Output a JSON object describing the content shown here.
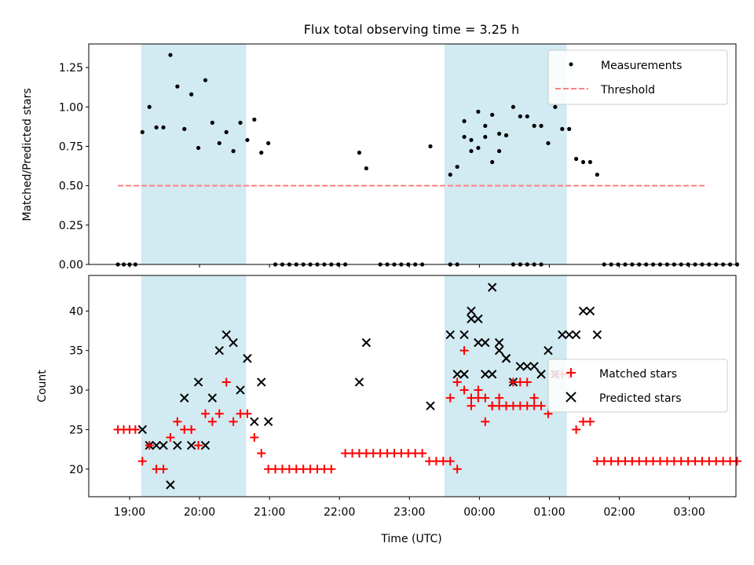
{
  "title": "Flux total observing time = 3.25 h",
  "colors": {
    "shade": "#add8e6",
    "threshold": "#ff7f7f",
    "matched": "#ff0000",
    "predicted": "#000000",
    "measurement": "#000000"
  },
  "chart_data": [
    {
      "type": "scatter",
      "ylabel": "Matched/Predicted stars",
      "xlim": [
        "18:25",
        "03:40"
      ],
      "ylim": [
        0,
        1.4
      ],
      "yticks": [
        "0.00",
        "0.25",
        "0.50",
        "0.75",
        "1.00",
        "1.25"
      ],
      "ytick_values": [
        0,
        0.25,
        0.5,
        0.75,
        1.0,
        1.25
      ],
      "legend_position": "upper right",
      "shaded_intervals": [
        [
          "19:10",
          "20:40"
        ],
        [
          "23:30",
          "01:15"
        ]
      ],
      "threshold": {
        "name": "Threshold",
        "value": 0.5,
        "x_range": [
          "18:50",
          "03:15"
        ]
      },
      "series": [
        {
          "name": "Measurements",
          "points": [
            [
              "18:50",
              0
            ],
            [
              "18:55",
              0
            ],
            [
              "19:00",
              0
            ],
            [
              "19:05",
              0
            ],
            [
              "19:11",
              0.84
            ],
            [
              "19:17",
              1.0
            ],
            [
              "19:23",
              0.87
            ],
            [
              "19:29",
              0.87
            ],
            [
              "19:35",
              1.33
            ],
            [
              "19:41",
              1.13
            ],
            [
              "19:47",
              0.86
            ],
            [
              "19:53",
              1.08
            ],
            [
              "19:59",
              0.74
            ],
            [
              "20:05",
              1.17
            ],
            [
              "20:11",
              0.9
            ],
            [
              "20:17",
              0.77
            ],
            [
              "20:23",
              0.84
            ],
            [
              "20:29",
              0.72
            ],
            [
              "20:35",
              0.9
            ],
            [
              "20:41",
              0.79
            ],
            [
              "20:47",
              0.92
            ],
            [
              "20:53",
              0.71
            ],
            [
              "20:59",
              0.77
            ],
            [
              "21:05",
              0
            ],
            [
              "21:11",
              0
            ],
            [
              "21:17",
              0
            ],
            [
              "21:23",
              0
            ],
            [
              "21:29",
              0
            ],
            [
              "21:35",
              0
            ],
            [
              "21:41",
              0
            ],
            [
              "21:47",
              0
            ],
            [
              "21:53",
              0
            ],
            [
              "21:59",
              0
            ],
            [
              "22:05",
              0
            ],
            [
              "22:17",
              0.71
            ],
            [
              "22:23",
              0.61
            ],
            [
              "22:35",
              0
            ],
            [
              "22:41",
              0
            ],
            [
              "22:47",
              0
            ],
            [
              "22:53",
              0
            ],
            [
              "22:59",
              0
            ],
            [
              "23:05",
              0
            ],
            [
              "23:11",
              0
            ],
            [
              "23:18",
              0.75
            ],
            [
              "23:35",
              0
            ],
            [
              "23:41",
              0
            ],
            [
              "23:47",
              0.91
            ],
            [
              "23:53",
              0.79
            ],
            [
              "23:59",
              0.97
            ],
            [
              "00:05",
              0.88
            ],
            [
              "00:11",
              0.95
            ],
            [
              "00:17",
              0.72
            ],
            [
              "00:23",
              0.82
            ],
            [
              "00:29",
              0
            ],
            [
              "00:35",
              0
            ],
            [
              "00:41",
              0
            ],
            [
              "00:47",
              0
            ],
            [
              "00:53",
              0
            ],
            [
              "23:35",
              0.57
            ],
            [
              "23:41",
              0.62
            ],
            [
              "23:47",
              0.81
            ],
            [
              "23:53",
              0.72
            ],
            [
              "23:59",
              0.74
            ],
            [
              "00:05",
              0.81
            ],
            [
              "00:11",
              0.65
            ],
            [
              "00:17",
              0.83
            ],
            [
              "00:23",
              0.82
            ],
            [
              "00:29",
              1.0
            ],
            [
              "00:35",
              0.94
            ],
            [
              "00:41",
              0.94
            ],
            [
              "00:47",
              0.88
            ],
            [
              "00:53",
              0.88
            ],
            [
              "00:59",
              0.77
            ],
            [
              "01:05",
              1.0
            ],
            [
              "01:11",
              0.86
            ],
            [
              "01:17",
              0.86
            ],
            [
              "01:23",
              0.67
            ],
            [
              "01:29",
              0.65
            ],
            [
              "01:35",
              0.65
            ],
            [
              "01:41",
              0.57
            ],
            [
              "01:47",
              0
            ],
            [
              "01:53",
              0
            ],
            [
              "01:59",
              0
            ],
            [
              "02:05",
              0
            ],
            [
              "02:11",
              0
            ],
            [
              "02:17",
              0
            ],
            [
              "02:23",
              0
            ],
            [
              "02:29",
              0
            ],
            [
              "02:35",
              0
            ],
            [
              "02:41",
              0
            ],
            [
              "02:47",
              0
            ],
            [
              "02:53",
              0
            ],
            [
              "02:59",
              0
            ],
            [
              "03:05",
              0
            ],
            [
              "03:11",
              0
            ],
            [
              "03:17",
              0
            ],
            [
              "03:23",
              0
            ],
            [
              "03:29",
              0
            ],
            [
              "03:35",
              0
            ],
            [
              "03:41",
              0
            ]
          ]
        }
      ]
    },
    {
      "type": "scatter",
      "xlabel": "Time (UTC)",
      "ylabel": "Count",
      "xlim": [
        "18:25",
        "03:40"
      ],
      "ylim": [
        16.5,
        44.5
      ],
      "yticks": [
        "20",
        "25",
        "30",
        "35",
        "40"
      ],
      "ytick_values": [
        20,
        25,
        30,
        35,
        40
      ],
      "xticks": [
        "19:00",
        "20:00",
        "21:00",
        "22:00",
        "23:00",
        "00:00",
        "01:00",
        "02:00",
        "03:00"
      ],
      "legend_position": "center right",
      "shaded_intervals": [
        [
          "19:10",
          "20:40"
        ],
        [
          "23:30",
          "01:15"
        ]
      ],
      "series": [
        {
          "name": "Matched stars",
          "points": [
            [
              "18:50",
              25
            ],
            [
              "18:55",
              25
            ],
            [
              "19:00",
              25
            ],
            [
              "19:05",
              25
            ],
            [
              "19:11",
              21
            ],
            [
              "19:17",
              23
            ],
            [
              "19:23",
              20
            ],
            [
              "19:29",
              20
            ],
            [
              "19:35",
              24
            ],
            [
              "19:41",
              26
            ],
            [
              "19:47",
              25
            ],
            [
              "19:53",
              25
            ],
            [
              "19:59",
              23
            ],
            [
              "20:05",
              27
            ],
            [
              "20:11",
              26
            ],
            [
              "20:17",
              27
            ],
            [
              "20:23",
              31
            ],
            [
              "20:29",
              26
            ],
            [
              "20:35",
              27
            ],
            [
              "20:41",
              27
            ],
            [
              "20:47",
              24
            ],
            [
              "20:53",
              22
            ],
            [
              "20:59",
              20
            ],
            [
              "21:05",
              20
            ],
            [
              "21:11",
              20
            ],
            [
              "21:17",
              20
            ],
            [
              "21:23",
              20
            ],
            [
              "21:29",
              20
            ],
            [
              "21:35",
              20
            ],
            [
              "21:41",
              20
            ],
            [
              "21:47",
              20
            ],
            [
              "21:53",
              20
            ],
            [
              "22:05",
              22
            ],
            [
              "22:11",
              22
            ],
            [
              "22:17",
              22
            ],
            [
              "22:23",
              22
            ],
            [
              "22:29",
              22
            ],
            [
              "22:35",
              22
            ],
            [
              "22:41",
              22
            ],
            [
              "22:47",
              22
            ],
            [
              "22:53",
              22
            ],
            [
              "22:59",
              22
            ],
            [
              "23:05",
              22
            ],
            [
              "23:11",
              22
            ],
            [
              "23:17",
              21
            ],
            [
              "23:23",
              21
            ],
            [
              "23:29",
              21
            ],
            [
              "23:35",
              29
            ],
            [
              "23:41",
              31
            ],
            [
              "23:47",
              35
            ],
            [
              "23:53",
              28
            ],
            [
              "23:59",
              30
            ],
            [
              "00:05",
              26
            ],
            [
              "00:11",
              28
            ],
            [
              "00:17",
              28
            ],
            [
              "00:23",
              28
            ],
            [
              "00:29",
              28
            ],
            [
              "00:35",
              28
            ],
            [
              "00:41",
              28
            ],
            [
              "00:47",
              28
            ],
            [
              "23:35",
              21
            ],
            [
              "23:41",
              20
            ],
            [
              "23:47",
              30
            ],
            [
              "23:53",
              29
            ],
            [
              "23:59",
              29
            ],
            [
              "00:05",
              29
            ],
            [
              "00:11",
              28
            ],
            [
              "00:17",
              29
            ],
            [
              "00:23",
              28
            ],
            [
              "00:29",
              31
            ],
            [
              "00:35",
              31
            ],
            [
              "00:41",
              31
            ],
            [
              "00:47",
              29
            ],
            [
              "00:53",
              28
            ],
            [
              "00:59",
              27
            ],
            [
              "01:05",
              32
            ],
            [
              "01:11",
              32
            ],
            [
              "01:17",
              32
            ],
            [
              "01:23",
              25
            ],
            [
              "01:29",
              26
            ],
            [
              "01:35",
              26
            ],
            [
              "01:41",
              21
            ],
            [
              "01:47",
              21
            ],
            [
              "01:53",
              21
            ],
            [
              "01:59",
              21
            ],
            [
              "02:05",
              21
            ],
            [
              "02:11",
              21
            ],
            [
              "02:17",
              21
            ],
            [
              "02:23",
              21
            ],
            [
              "02:29",
              21
            ],
            [
              "02:35",
              21
            ],
            [
              "02:41",
              21
            ],
            [
              "02:47",
              21
            ],
            [
              "02:53",
              21
            ],
            [
              "02:59",
              21
            ],
            [
              "03:05",
              21
            ],
            [
              "03:11",
              21
            ],
            [
              "03:17",
              21
            ],
            [
              "03:23",
              21
            ],
            [
              "03:29",
              21
            ],
            [
              "03:35",
              21
            ],
            [
              "03:41",
              21
            ]
          ]
        },
        {
          "name": "Predicted stars",
          "points": [
            [
              "19:11",
              25
            ],
            [
              "19:17",
              23
            ],
            [
              "19:23",
              23
            ],
            [
              "19:29",
              23
            ],
            [
              "19:35",
              18
            ],
            [
              "19:41",
              23
            ],
            [
              "19:47",
              29
            ],
            [
              "19:53",
              23
            ],
            [
              "19:59",
              31
            ],
            [
              "20:05",
              23
            ],
            [
              "20:11",
              29
            ],
            [
              "20:17",
              35
            ],
            [
              "20:23",
              37
            ],
            [
              "20:29",
              36
            ],
            [
              "20:35",
              30
            ],
            [
              "20:41",
              34
            ],
            [
              "20:47",
              26
            ],
            [
              "20:53",
              31
            ],
            [
              "20:59",
              26
            ],
            [
              "22:17",
              31
            ],
            [
              "22:23",
              36
            ],
            [
              "23:18",
              28
            ],
            [
              "23:47",
              32
            ],
            [
              "23:53",
              39
            ],
            [
              "23:59",
              36
            ],
            [
              "00:05",
              32
            ],
            [
              "00:11",
              32
            ],
            [
              "00:17",
              36
            ],
            [
              "00:23",
              34
            ],
            [
              "23:35",
              37
            ],
            [
              "23:41",
              32
            ],
            [
              "23:47",
              37
            ],
            [
              "23:53",
              40
            ],
            [
              "23:59",
              39
            ],
            [
              "00:05",
              36
            ],
            [
              "00:11",
              43
            ],
            [
              "00:17",
              35
            ],
            [
              "00:23",
              34
            ],
            [
              "00:29",
              31
            ],
            [
              "00:35",
              33
            ],
            [
              "00:41",
              33
            ],
            [
              "00:47",
              33
            ],
            [
              "00:53",
              32
            ],
            [
              "00:59",
              35
            ],
            [
              "01:05",
              32
            ],
            [
              "01:11",
              37
            ],
            [
              "01:17",
              37
            ],
            [
              "01:23",
              37
            ],
            [
              "01:29",
              40
            ],
            [
              "01:35",
              40
            ],
            [
              "01:41",
              37
            ]
          ]
        }
      ]
    }
  ]
}
